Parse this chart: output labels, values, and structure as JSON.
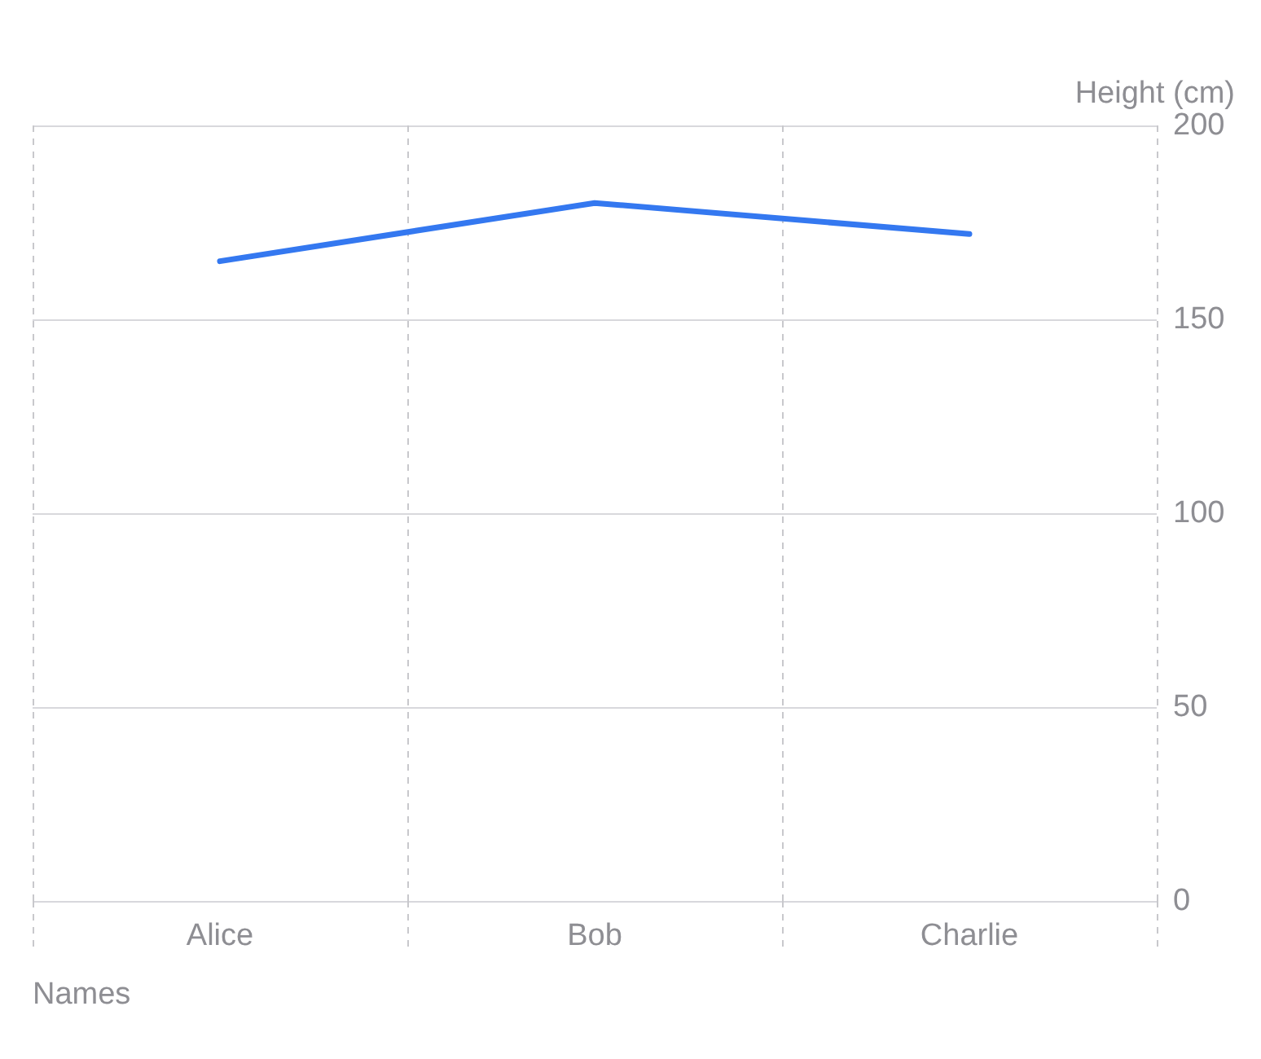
{
  "chart_data": {
    "type": "line",
    "xlabel": "Names",
    "ylabel": "Height (cm)",
    "categories": [
      "Alice",
      "Bob",
      "Charlie"
    ],
    "series": [
      {
        "color": "#3478f0",
        "values": [
          165,
          180,
          172
        ]
      }
    ],
    "ylim": [
      0,
      200
    ],
    "yticks": [
      0,
      50,
      100,
      150,
      200
    ],
    "grid": true,
    "marker": "none",
    "line_style": "solid"
  }
}
